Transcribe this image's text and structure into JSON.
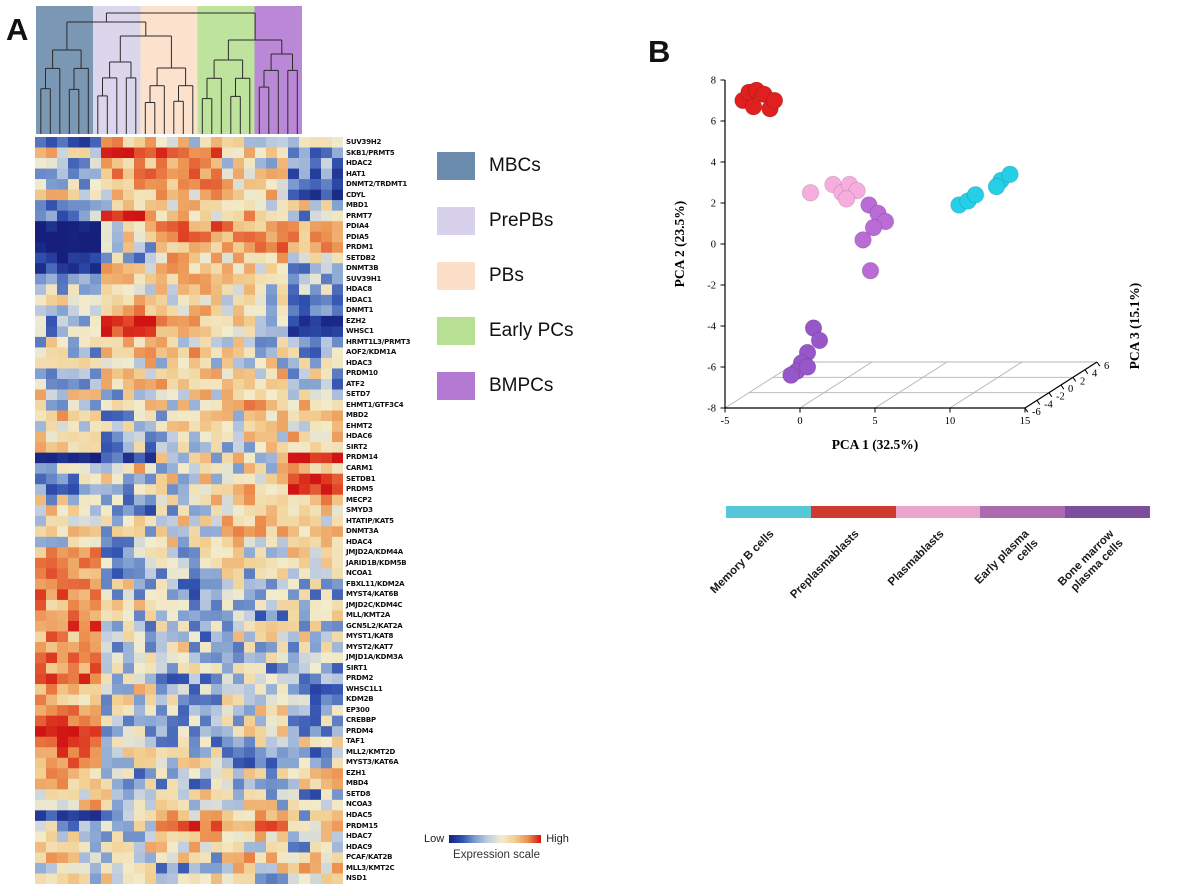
{
  "figure": {
    "panel_a_label": "A",
    "panel_b_label": "B"
  },
  "panel_a": {
    "expression_scale": {
      "low": "Low",
      "high": "High",
      "caption": "Expression scale",
      "gradient": [
        "#16207c",
        "#3050b0",
        "#7e9ed0",
        "#c3cfe0",
        "#f2eccd",
        "#f2cf92",
        "#ec9150",
        "#d01414"
      ]
    }
  },
  "pca_legend": {
    "segments": [
      {
        "label": "Memory B cells",
        "color": "#56c6d9"
      },
      {
        "label": "Preplasmablasts",
        "color": "#cf3a30"
      },
      {
        "label": "Plasmablasts",
        "color": "#e9a6cd"
      },
      {
        "label": "Early plasma\ncells",
        "color": "#aa6aad"
      },
      {
        "label": "Bone marrow\nplasma cells",
        "color": "#7c4f9c"
      }
    ]
  },
  "chart_data": [
    {
      "type": "heatmap",
      "column_groups": [
        {
          "label": "MBCs",
          "columns": 6,
          "color": "#6b8cac"
        },
        {
          "label": "PrePBs",
          "columns": 5,
          "color": "#d8d1eb"
        },
        {
          "label": "PBs",
          "columns": 6,
          "color": "#fcdfc8"
        },
        {
          "label": "Early PCs",
          "columns": 6,
          "color": "#b7e092"
        },
        {
          "label": "BMPCs",
          "columns": 5,
          "color": "#b47ad3"
        }
      ],
      "rows": [
        "SUV39H2",
        "SKB1/PRMT5",
        "HDAC2",
        "HAT1",
        "DNMT2/TRDMT1",
        "CDYL",
        "MBD1",
        "PRMT7",
        "PDIA4",
        "PDIA5",
        "PRDM1",
        "SETDB2",
        "DNMT3B",
        "SUV39H1",
        "HDAC8",
        "HDAC1",
        "DNMT1",
        "EZH2",
        "WHSC1",
        "HRMT1L3/PRMT3",
        "AOF2/KDM1A",
        "HDAC3",
        "PRDM10",
        "ATF2",
        "SETD7",
        "EHMT1/GTF3C4",
        "MBD2",
        "EHMT2",
        "HDAC6",
        "SIRT2",
        "PRDM14",
        "CARM1",
        "SETDB1",
        "PRDM5",
        "MECP2",
        "SMYD3",
        "HTATIP/KAT5",
        "DNMT3A",
        "HDAC4",
        "JMJD2A/KDM4A",
        "JARID1B/KDM5B",
        "NCOA1",
        "FBXL11/KDM2A",
        "MYST4/KAT6B",
        "JMJD2C/KDM4C",
        "MLL/KMT2A",
        "GCN5L2/KAT2A",
        "MYST1/KAT8",
        "MYST2/KAT7",
        "JMJD1A/KDM3A",
        "SIRT1",
        "PRDM2",
        "WHSC1L1",
        "KDM2B",
        "EP300",
        "CREBBP",
        "PRDM4",
        "TAF1",
        "MLL2/KMT2D",
        "MYST3/KAT6A",
        "EZH1",
        "MBD4",
        "SETD8",
        "NCOA3",
        "HDAC5",
        "PRDM15",
        "HDAC7",
        "HDAC9",
        "PCAF/KAT2B",
        "MLL3/KMT2C",
        "NSD1"
      ],
      "value_range": [
        -1,
        1
      ],
      "group_values": [
        [
          -0.6,
          0.3,
          0.1,
          0.2,
          -0.2
        ],
        [
          0.2,
          0.9,
          0.7,
          0.3,
          -0.3
        ],
        [
          -0.3,
          0.4,
          0.5,
          0.1,
          -0.4
        ],
        [
          -0.4,
          0.5,
          0.6,
          0.3,
          -0.5
        ],
        [
          -0.2,
          0.4,
          0.5,
          0.2,
          -0.6
        ],
        [
          0.1,
          0.2,
          0.3,
          0.2,
          -0.7
        ],
        [
          -0.5,
          0.0,
          0.3,
          0.2,
          0.1
        ],
        [
          -0.3,
          0.8,
          0.3,
          0.4,
          -0.2
        ],
        [
          -1.0,
          0.2,
          0.6,
          0.5,
          0.3
        ],
        [
          -1.0,
          0.1,
          0.7,
          0.6,
          0.4
        ],
        [
          -1.0,
          0.0,
          0.5,
          0.6,
          0.5
        ],
        [
          -0.8,
          -0.2,
          0.3,
          0.3,
          0.2
        ],
        [
          -0.7,
          0.3,
          0.4,
          0.1,
          -0.3
        ],
        [
          -0.5,
          0.2,
          0.3,
          0.2,
          -0.2
        ],
        [
          -0.2,
          0.1,
          0.2,
          0.1,
          -0.1
        ],
        [
          0.0,
          0.3,
          0.2,
          0.0,
          -0.3
        ],
        [
          -0.2,
          0.5,
          0.3,
          0.1,
          -0.4
        ],
        [
          -0.3,
          1.0,
          0.4,
          0.1,
          -0.8
        ],
        [
          -0.2,
          0.9,
          0.3,
          0.0,
          -0.7
        ],
        [
          0.0,
          0.4,
          0.2,
          0.0,
          -0.3
        ],
        [
          -0.1,
          0.3,
          0.3,
          0.1,
          -0.2
        ],
        [
          0.1,
          0.2,
          0.1,
          0.0,
          -0.1
        ],
        [
          0.0,
          0.1,
          0.3,
          0.2,
          0.0
        ],
        [
          -0.2,
          0.3,
          0.4,
          0.1,
          -0.2
        ],
        [
          0.2,
          0.0,
          0.2,
          0.3,
          0.1
        ],
        [
          0.0,
          0.2,
          0.1,
          0.4,
          0.2
        ],
        [
          0.4,
          -0.2,
          0.0,
          0.1,
          0.2
        ],
        [
          0.1,
          0.0,
          0.2,
          0.1,
          0.0
        ],
        [
          0.2,
          -0.3,
          0.0,
          0.1,
          0.3
        ],
        [
          0.3,
          -0.2,
          -0.1,
          0.0,
          0.2
        ],
        [
          -1.0,
          -0.6,
          0.0,
          0.1,
          1.0
        ],
        [
          0.1,
          0.2,
          0.0,
          0.1,
          0.3
        ],
        [
          -0.2,
          0.0,
          0.1,
          0.2,
          0.8
        ],
        [
          -0.3,
          -0.1,
          0.0,
          0.3,
          0.9
        ],
        [
          0.0,
          -0.2,
          0.1,
          0.2,
          0.4
        ],
        [
          0.1,
          -0.3,
          0.0,
          0.3,
          0.2
        ],
        [
          0.0,
          0.1,
          0.2,
          0.4,
          0.1
        ],
        [
          0.2,
          -0.1,
          0.0,
          0.3,
          0.2
        ],
        [
          0.1,
          -0.2,
          0.1,
          0.2,
          0.3
        ],
        [
          0.5,
          -0.2,
          -0.1,
          0.0,
          0.1
        ],
        [
          0.7,
          -0.3,
          -0.2,
          0.1,
          0.2
        ],
        [
          0.6,
          -0.2,
          -0.3,
          0.0,
          0.1
        ],
        [
          0.5,
          0.0,
          -0.2,
          -0.1,
          0.0
        ],
        [
          0.6,
          -0.1,
          -0.3,
          0.0,
          -0.2
        ],
        [
          0.5,
          0.1,
          -0.2,
          -0.1,
          0.0
        ],
        [
          0.6,
          0.0,
          -0.3,
          -0.2,
          0.1
        ],
        [
          0.7,
          -0.2,
          -0.1,
          0.0,
          -0.1
        ],
        [
          0.5,
          0.0,
          -0.2,
          0.1,
          0.0
        ],
        [
          0.6,
          -0.1,
          0.0,
          -0.2,
          -0.1
        ],
        [
          0.7,
          0.1,
          -0.2,
          -0.1,
          0.0
        ],
        [
          0.6,
          0.0,
          -0.1,
          -0.2,
          -0.3
        ],
        [
          0.8,
          -0.2,
          -0.3,
          0.0,
          -0.1
        ],
        [
          0.5,
          0.1,
          -0.2,
          -0.1,
          -0.4
        ],
        [
          0.4,
          0.0,
          -0.1,
          0.0,
          -0.3
        ],
        [
          0.6,
          -0.1,
          -0.2,
          0.1,
          -0.2
        ],
        [
          0.8,
          0.0,
          -0.3,
          -0.1,
          -0.2
        ],
        [
          1.0,
          -0.2,
          -0.1,
          0.0,
          -0.3
        ],
        [
          0.9,
          0.1,
          -0.2,
          -0.1,
          0.0
        ],
        [
          0.7,
          0.0,
          -0.1,
          -0.2,
          -0.3
        ],
        [
          0.6,
          -0.1,
          0.0,
          -0.3,
          -0.2
        ],
        [
          0.4,
          -0.2,
          -0.1,
          0.0,
          0.2
        ],
        [
          0.3,
          0.0,
          -0.2,
          -0.1,
          0.1
        ],
        [
          0.2,
          0.1,
          0.0,
          -0.2,
          -0.3
        ],
        [
          0.3,
          -0.1,
          0.1,
          0.0,
          -0.2
        ],
        [
          -0.6,
          -0.2,
          0.3,
          0.4,
          0.0
        ],
        [
          -0.2,
          0.0,
          0.8,
          0.6,
          0.2
        ],
        [
          0.1,
          -0.2,
          0.3,
          0.2,
          0.0
        ],
        [
          0.0,
          0.1,
          0.2,
          -0.1,
          -0.2
        ],
        [
          0.2,
          -0.1,
          0.0,
          0.3,
          0.1
        ],
        [
          0.1,
          0.0,
          -0.2,
          0.2,
          0.3
        ],
        [
          0.0,
          0.2,
          0.1,
          -0.1,
          0.0
        ]
      ],
      "colorscale": [
        [
          -1.0,
          "#16207c"
        ],
        [
          -0.6,
          "#3050b0"
        ],
        [
          -0.3,
          "#7e9ed0"
        ],
        [
          -0.1,
          "#c3cfe0"
        ],
        [
          0.02,
          "#f2eccd"
        ],
        [
          0.3,
          "#f2cf92"
        ],
        [
          0.6,
          "#ec9150"
        ],
        [
          0.85,
          "#df3d22"
        ],
        [
          1.0,
          "#d01414"
        ]
      ]
    },
    {
      "type": "scatter",
      "projection": "3d",
      "xlabel": "PCA 1 (32.5%)",
      "ylabel": "PCA 2 (23.5%)",
      "zlabel": "PCA 3 (15.1%)",
      "xlim": [
        -5,
        15
      ],
      "ylim": [
        -8,
        8
      ],
      "zlim": [
        -6,
        6
      ],
      "xticks": [
        -5,
        0,
        5,
        10,
        15
      ],
      "yticks": [
        -8,
        -6,
        -4,
        -2,
        0,
        2,
        4,
        6,
        8
      ],
      "zticks": [
        -6,
        -4,
        -2,
        0,
        2,
        4,
        6
      ],
      "series": [
        {
          "name": "Preplasmablasts",
          "color": "#e01f1f",
          "points": [
            [
              -3.8,
              7.0
            ],
            [
              -3.4,
              7.4
            ],
            [
              -2.9,
              7.5
            ],
            [
              -2.4,
              7.3
            ],
            [
              -3.1,
              6.7
            ],
            [
              -2.0,
              6.6
            ],
            [
              -1.7,
              7.0
            ]
          ]
        },
        {
          "name": "Plasmablasts",
          "color": "#f7aede",
          "points": [
            [
              0.7,
              2.5
            ],
            [
              2.2,
              2.9
            ],
            [
              2.8,
              2.5
            ],
            [
              3.3,
              2.9
            ],
            [
              3.8,
              2.6
            ],
            [
              3.1,
              2.2
            ]
          ]
        },
        {
          "name": "Early plasma cells",
          "color": "#b96bd6",
          "points": [
            [
              4.6,
              1.9
            ],
            [
              5.2,
              1.5
            ],
            [
              5.7,
              1.1
            ],
            [
              4.9,
              0.8
            ],
            [
              4.2,
              0.2
            ],
            [
              4.7,
              -1.3
            ]
          ]
        },
        {
          "name": "Memory B cells",
          "color": "#25cfe8",
          "points": [
            [
              10.6,
              1.9
            ],
            [
              11.2,
              2.1
            ],
            [
              11.7,
              2.4
            ],
            [
              13.4,
              3.1
            ],
            [
              14.0,
              3.4
            ],
            [
              13.1,
              2.8
            ]
          ]
        },
        {
          "name": "Bone marrow plasma cells",
          "color": "#9757c8",
          "points": [
            [
              0.9,
              -4.1
            ],
            [
              1.3,
              -4.7
            ],
            [
              0.5,
              -5.3
            ],
            [
              0.1,
              -5.8
            ],
            [
              -0.2,
              -6.2
            ],
            [
              0.5,
              -6.0
            ],
            [
              -0.6,
              -6.4
            ]
          ]
        }
      ]
    }
  ]
}
